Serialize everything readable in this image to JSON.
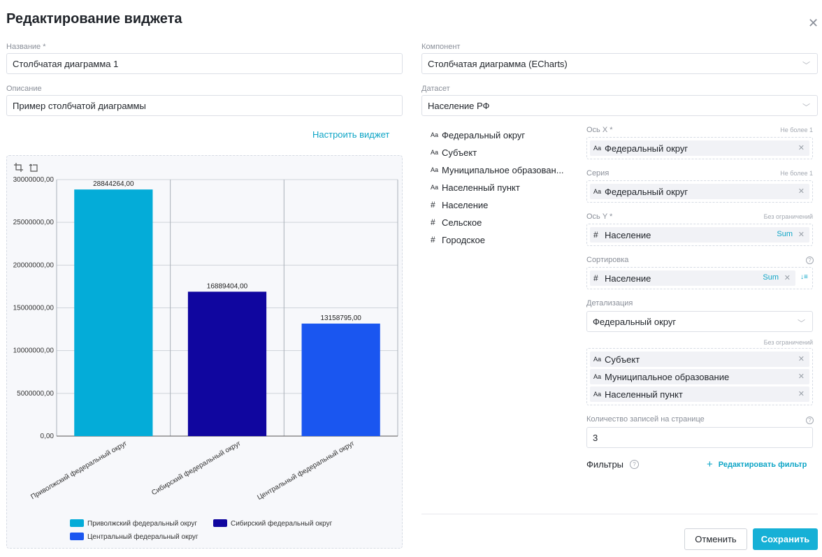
{
  "dialog": {
    "title": "Редактирование виджета"
  },
  "form": {
    "name_label": "Название *",
    "name_value": "Столбчатая диаграмма 1",
    "description_label": "Описание",
    "description_value": "Пример столбчатой диаграммы",
    "component_label": "Компонент",
    "component_value": "Столбчатая диаграмма (ECharts)",
    "dataset_label": "Датасет",
    "dataset_value": "Население РФ",
    "configure_link": "Настроить виджет"
  },
  "fields": [
    {
      "type": "Aa",
      "label": "Федеральный округ"
    },
    {
      "type": "Aa",
      "label": "Субъект"
    },
    {
      "type": "Aa",
      "label": "Муниципальное образован..."
    },
    {
      "type": "Aa",
      "label": "Населенный пункт"
    },
    {
      "type": "#",
      "label": "Население"
    },
    {
      "type": "#",
      "label": "Сельское"
    },
    {
      "type": "#",
      "label": "Городское"
    }
  ],
  "config": {
    "x_axis": {
      "label": "Ось X *",
      "hint": "Не более 1",
      "chip_type": "Aa",
      "chip": "Федеральный округ"
    },
    "series": {
      "label": "Серия",
      "hint": "Не более 1",
      "chip_type": "Aa",
      "chip": "Федеральный округ"
    },
    "y_axis": {
      "label": "Ось Y *",
      "hint": "Без ограничений",
      "chip_type": "#",
      "chip": "Население",
      "agg": "Sum"
    },
    "sort": {
      "label": "Сортировка",
      "help": "?",
      "chip_type": "#",
      "chip": "Население",
      "agg": "Sum",
      "order_icon": "↓≡"
    },
    "detail": {
      "label": "Детализация",
      "select_value": "Федеральный округ",
      "hint": "Без ограничений",
      "chips": [
        {
          "type": "Aa",
          "label": "Субъект"
        },
        {
          "type": "Aa",
          "label": "Муниципальное образование"
        },
        {
          "type": "Aa",
          "label": "Населенный пункт"
        }
      ]
    },
    "page_size": {
      "label": "Количество записей на странице",
      "help": "?",
      "value": "3"
    },
    "filters": {
      "label": "Фильтры",
      "help": "?",
      "edit_label": "Редактировать фильтр",
      "plus": "+"
    }
  },
  "buttons": {
    "cancel": "Отменить",
    "save": "Сохранить"
  },
  "toolbar": {
    "icons": [
      "zoom-icon",
      "zoom-reset-icon"
    ]
  },
  "chart_data": {
    "type": "bar",
    "categories": [
      "Приволжский федеральный округ",
      "Сибирский федеральный округ",
      "Центральный федеральный округ"
    ],
    "values": [
      28844264.0,
      16889404.0,
      13158795.0
    ],
    "value_labels": [
      "28844264,00",
      "16889404,00",
      "13158795,00"
    ],
    "colors": [
      "#04acd8",
      "#10069f",
      "#1a56f0"
    ],
    "ylim": [
      0,
      30000000
    ],
    "yticks": [
      0,
      5000000,
      10000000,
      15000000,
      20000000,
      25000000,
      30000000
    ],
    "ytick_labels": [
      "0,00",
      "5000000,00",
      "10000000,00",
      "15000000,00",
      "20000000,00",
      "25000000,00",
      "30000000,00"
    ],
    "legend": [
      "Приволжский федеральный округ",
      "Сибирский федеральный округ",
      "Центральный федеральный округ"
    ],
    "legend_position": "bottom",
    "grid": true
  }
}
